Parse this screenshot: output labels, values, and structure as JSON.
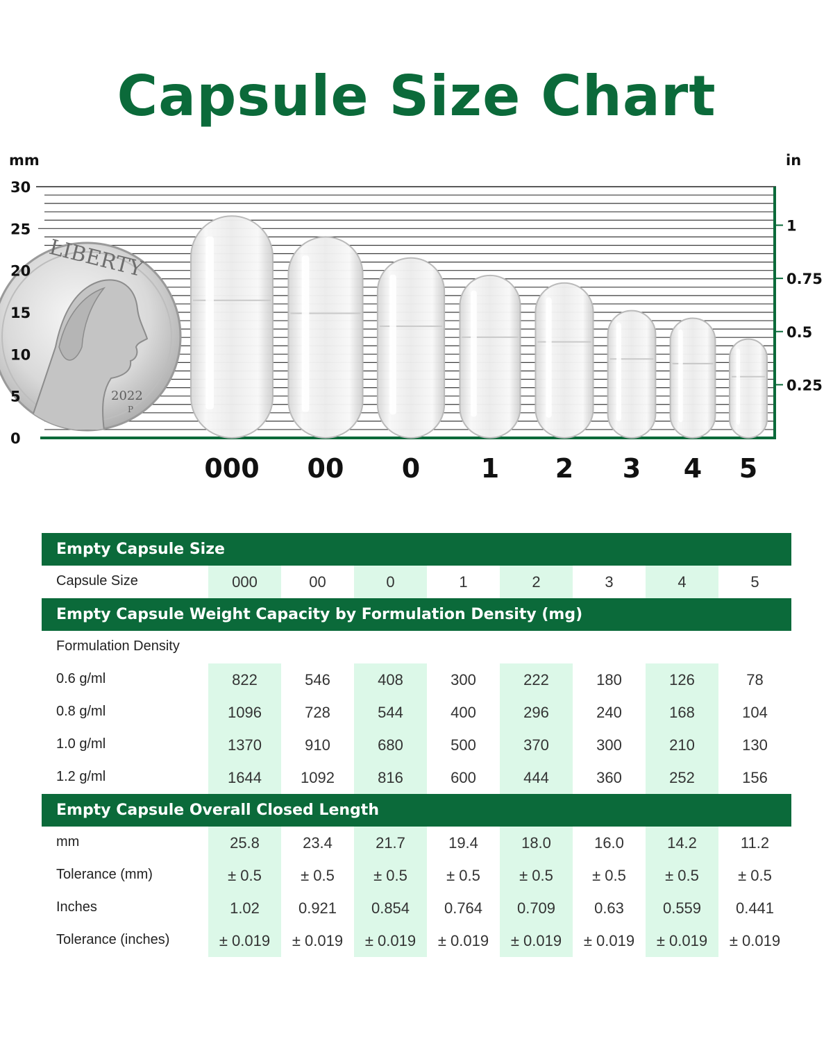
{
  "title": "Capsule Size Chart",
  "colors": {
    "brand_green": "#0b6a3a",
    "highlight": "#dcf8e8",
    "grid": "#333333"
  },
  "chart_data": {
    "type": "bar",
    "left_axis": {
      "unit": "mm",
      "ticks": [
        "0",
        "5",
        "10",
        "15",
        "20",
        "25",
        "30"
      ],
      "ylim": [
        0,
        30
      ]
    },
    "right_axis": {
      "unit": "in",
      "ticks": [
        "0.25",
        "0.5",
        "0.75",
        "1"
      ]
    },
    "categories": [
      "000",
      "00",
      "0",
      "1",
      "2",
      "3",
      "4",
      "5"
    ],
    "values": [
      26.5,
      24,
      21.5,
      19.4,
      18.5,
      15.2,
      14.3,
      11.8
    ],
    "reference": {
      "object": "coin",
      "year": "2022",
      "mint_mark": "P",
      "inscription": "LIBERTY"
    },
    "grid": true
  },
  "table": {
    "sections": [
      {
        "title": "Empty Capsule Size",
        "rows": [
          {
            "label": "Capsule Size",
            "values": [
              "000",
              "00",
              "0",
              "1",
              "2",
              "3",
              "4",
              "5"
            ]
          }
        ]
      },
      {
        "title": "Empty Capsule Weight Capacity by Formulation Density (mg)",
        "rows": [
          {
            "label": "Formulation Density",
            "values": []
          },
          {
            "label": "0.6 g/ml",
            "values": [
              "822",
              "546",
              "408",
              "300",
              "222",
              "180",
              "126",
              "78"
            ]
          },
          {
            "label": "0.8 g/ml",
            "values": [
              "1096",
              "728",
              "544",
              "400",
              "296",
              "240",
              "168",
              "104"
            ]
          },
          {
            "label": "1.0 g/ml",
            "values": [
              "1370",
              "910",
              "680",
              "500",
              "370",
              "300",
              "210",
              "130"
            ]
          },
          {
            "label": "1.2 g/ml",
            "values": [
              "1644",
              "1092",
              "816",
              "600",
              "444",
              "360",
              "252",
              "156"
            ]
          }
        ]
      },
      {
        "title": "Empty Capsule Overall Closed Length",
        "rows": [
          {
            "label": "mm",
            "values": [
              "25.8",
              "23.4",
              "21.7",
              "19.4",
              "18.0",
              "16.0",
              "14.2",
              "11.2"
            ]
          },
          {
            "label": "Tolerance (mm)",
            "values": [
              "± 0.5",
              "± 0.5",
              "± 0.5",
              "± 0.5",
              "± 0.5",
              "± 0.5",
              "± 0.5",
              "± 0.5"
            ]
          },
          {
            "label": "Inches",
            "values": [
              "1.02",
              "0.921",
              "0.854",
              "0.764",
              "0.709",
              "0.63",
              "0.559",
              "0.441"
            ]
          },
          {
            "label": "Tolerance (inches)",
            "values": [
              "± 0.019",
              "± 0.019",
              "± 0.019",
              "± 0.019",
              "± 0.019",
              "± 0.019",
              "± 0.019",
              "± 0.019"
            ]
          }
        ]
      }
    ]
  }
}
